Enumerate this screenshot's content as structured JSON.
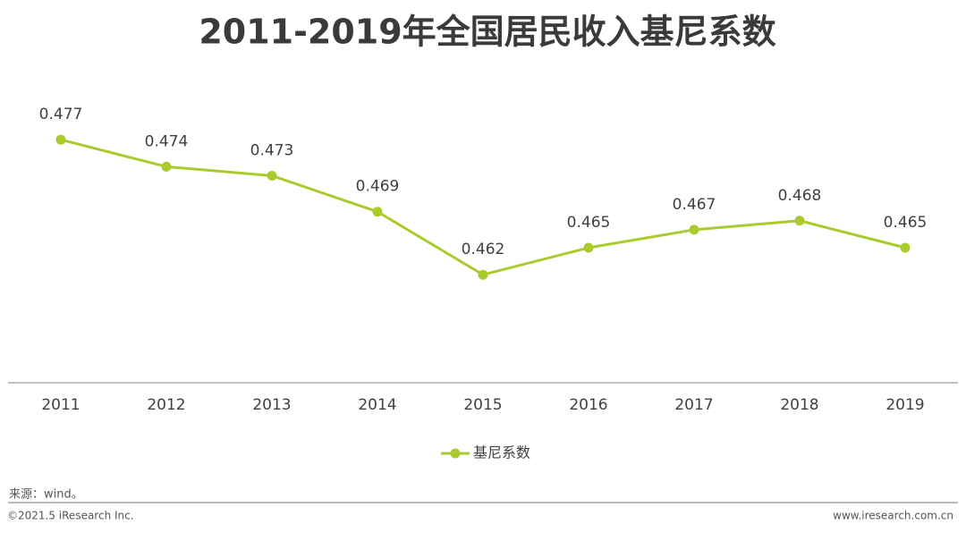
{
  "chart_data": {
    "type": "line",
    "title": "2011-2019年全国居民收入基尼系数",
    "categories": [
      "2011",
      "2012",
      "2013",
      "2014",
      "2015",
      "2016",
      "2017",
      "2018",
      "2019"
    ],
    "series": [
      {
        "name": "基尼系数",
        "color": "#a9cb2d",
        "values": [
          0.477,
          0.474,
          0.473,
          0.469,
          0.462,
          0.465,
          0.467,
          0.468,
          0.465
        ]
      }
    ],
    "ylim": [
      0.45,
      0.48
    ],
    "grid": false,
    "legend": "bottom"
  },
  "source": "来源：wind。",
  "footer": {
    "left": "©2021.5 iResearch Inc.",
    "right": "www.iresearch.com.cn"
  }
}
